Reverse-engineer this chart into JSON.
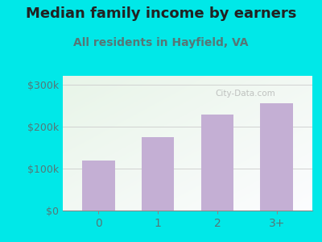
{
  "title": "Median family income by earners",
  "subtitle": "All residents in Hayfield, VA",
  "categories": [
    "0",
    "1",
    "2",
    "3+"
  ],
  "values": [
    120000,
    175000,
    228000,
    255000
  ],
  "bar_color": "#c4afd4",
  "title_fontsize": 13,
  "subtitle_fontsize": 10,
  "title_color": "#222222",
  "subtitle_color": "#557777",
  "tick_color": "#557777",
  "ylim": [
    0,
    320000
  ],
  "yticks": [
    0,
    100000,
    200000,
    300000
  ],
  "ytick_labels": [
    "$0",
    "$100k",
    "$200k",
    "$300k"
  ],
  "bg_outer": "#00e8e8",
  "watermark": "City-Data.com"
}
